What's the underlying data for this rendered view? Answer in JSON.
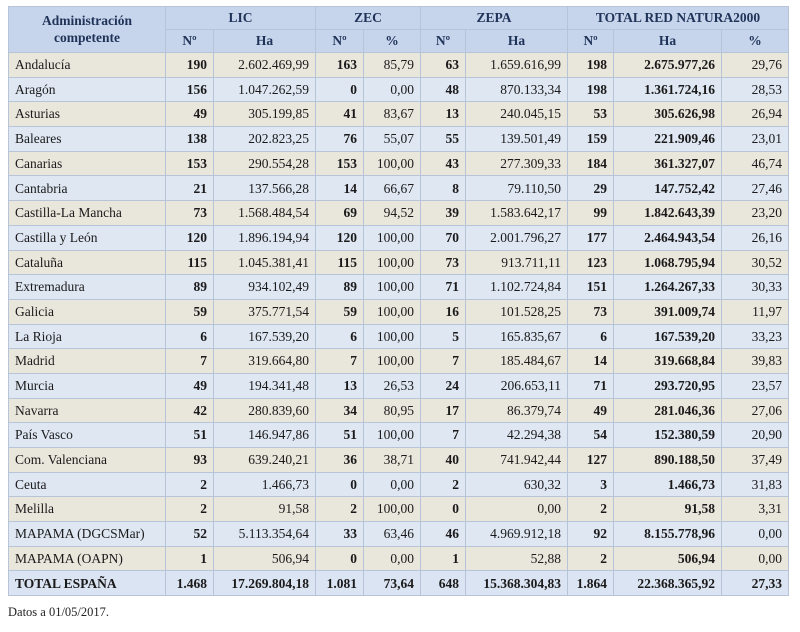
{
  "headers": {
    "admin": "Administración competente",
    "lic": "LIC",
    "zec": "ZEC",
    "zepa": "ZEPA",
    "total": "TOTAL RED NATURA2000",
    "no": "Nº",
    "ha": "Ha",
    "pct": "%"
  },
  "rows": [
    {
      "name": "Andalucía",
      "lic_n": "190",
      "lic_ha": "2.602.469,99",
      "zec_n": "163",
      "zec_pct": "85,79",
      "zepa_n": "63",
      "zepa_ha": "1.659.616,99",
      "tot_n": "198",
      "tot_ha": "2.675.977,26",
      "tot_pct": "29,76"
    },
    {
      "name": "Aragón",
      "lic_n": "156",
      "lic_ha": "1.047.262,59",
      "zec_n": "0",
      "zec_pct": "0,00",
      "zepa_n": "48",
      "zepa_ha": "870.133,34",
      "tot_n": "198",
      "tot_ha": "1.361.724,16",
      "tot_pct": "28,53"
    },
    {
      "name": "Asturias",
      "lic_n": "49",
      "lic_ha": "305.199,85",
      "zec_n": "41",
      "zec_pct": "83,67",
      "zepa_n": "13",
      "zepa_ha": "240.045,15",
      "tot_n": "53",
      "tot_ha": "305.626,98",
      "tot_pct": "26,94"
    },
    {
      "name": "Baleares",
      "lic_n": "138",
      "lic_ha": "202.823,25",
      "zec_n": "76",
      "zec_pct": "55,07",
      "zepa_n": "55",
      "zepa_ha": "139.501,49",
      "tot_n": "159",
      "tot_ha": "221.909,46",
      "tot_pct": "23,01"
    },
    {
      "name": "Canarias",
      "lic_n": "153",
      "lic_ha": "290.554,28",
      "zec_n": "153",
      "zec_pct": "100,00",
      "zepa_n": "43",
      "zepa_ha": "277.309,33",
      "tot_n": "184",
      "tot_ha": "361.327,07",
      "tot_pct": "46,74"
    },
    {
      "name": "Cantabria",
      "lic_n": "21",
      "lic_ha": "137.566,28",
      "zec_n": "14",
      "zec_pct": "66,67",
      "zepa_n": "8",
      "zepa_ha": "79.110,50",
      "tot_n": "29",
      "tot_ha": "147.752,42",
      "tot_pct": "27,46"
    },
    {
      "name": "Castilla-La Mancha",
      "lic_n": "73",
      "lic_ha": "1.568.484,54",
      "zec_n": "69",
      "zec_pct": "94,52",
      "zepa_n": "39",
      "zepa_ha": "1.583.642,17",
      "tot_n": "99",
      "tot_ha": "1.842.643,39",
      "tot_pct": "23,20"
    },
    {
      "name": "Castilla y León",
      "lic_n": "120",
      "lic_ha": "1.896.194,94",
      "zec_n": "120",
      "zec_pct": "100,00",
      "zepa_n": "70",
      "zepa_ha": "2.001.796,27",
      "tot_n": "177",
      "tot_ha": "2.464.943,54",
      "tot_pct": "26,16"
    },
    {
      "name": "Cataluña",
      "lic_n": "115",
      "lic_ha": "1.045.381,41",
      "zec_n": "115",
      "zec_pct": "100,00",
      "zepa_n": "73",
      "zepa_ha": "913.711,11",
      "tot_n": "123",
      "tot_ha": "1.068.795,94",
      "tot_pct": "30,52"
    },
    {
      "name": "Extremadura",
      "lic_n": "89",
      "lic_ha": "934.102,49",
      "zec_n": "89",
      "zec_pct": "100,00",
      "zepa_n": "71",
      "zepa_ha": "1.102.724,84",
      "tot_n": "151",
      "tot_ha": "1.264.267,33",
      "tot_pct": "30,33"
    },
    {
      "name": "Galicia",
      "lic_n": "59",
      "lic_ha": "375.771,54",
      "zec_n": "59",
      "zec_pct": "100,00",
      "zepa_n": "16",
      "zepa_ha": "101.528,25",
      "tot_n": "73",
      "tot_ha": "391.009,74",
      "tot_pct": "11,97"
    },
    {
      "name": "La Rioja",
      "lic_n": "6",
      "lic_ha": "167.539,20",
      "zec_n": "6",
      "zec_pct": "100,00",
      "zepa_n": "5",
      "zepa_ha": "165.835,67",
      "tot_n": "6",
      "tot_ha": "167.539,20",
      "tot_pct": "33,23"
    },
    {
      "name": "Madrid",
      "lic_n": "7",
      "lic_ha": "319.664,80",
      "zec_n": "7",
      "zec_pct": "100,00",
      "zepa_n": "7",
      "zepa_ha": "185.484,67",
      "tot_n": "14",
      "tot_ha": "319.668,84",
      "tot_pct": "39,83"
    },
    {
      "name": "Murcia",
      "lic_n": "49",
      "lic_ha": "194.341,48",
      "zec_n": "13",
      "zec_pct": "26,53",
      "zepa_n": "24",
      "zepa_ha": "206.653,11",
      "tot_n": "71",
      "tot_ha": "293.720,95",
      "tot_pct": "23,57"
    },
    {
      "name": "Navarra",
      "lic_n": "42",
      "lic_ha": "280.839,60",
      "zec_n": "34",
      "zec_pct": "80,95",
      "zepa_n": "17",
      "zepa_ha": "86.379,74",
      "tot_n": "49",
      "tot_ha": "281.046,36",
      "tot_pct": "27,06"
    },
    {
      "name": "País Vasco",
      "lic_n": "51",
      "lic_ha": "146.947,86",
      "zec_n": "51",
      "zec_pct": "100,00",
      "zepa_n": "7",
      "zepa_ha": "42.294,38",
      "tot_n": "54",
      "tot_ha": "152.380,59",
      "tot_pct": "20,90"
    },
    {
      "name": "Com. Valenciana",
      "lic_n": "93",
      "lic_ha": "639.240,21",
      "zec_n": "36",
      "zec_pct": "38,71",
      "zepa_n": "40",
      "zepa_ha": "741.942,44",
      "tot_n": "127",
      "tot_ha": "890.188,50",
      "tot_pct": "37,49"
    },
    {
      "name": "Ceuta",
      "lic_n": "2",
      "lic_ha": "1.466,73",
      "zec_n": "0",
      "zec_pct": "0,00",
      "zepa_n": "2",
      "zepa_ha": "630,32",
      "tot_n": "3",
      "tot_ha": "1.466,73",
      "tot_pct": "31,83"
    },
    {
      "name": "Melilla",
      "lic_n": "2",
      "lic_ha": "91,58",
      "zec_n": "2",
      "zec_pct": "100,00",
      "zepa_n": "0",
      "zepa_ha": "0,00",
      "tot_n": "2",
      "tot_ha": "91,58",
      "tot_pct": "3,31"
    },
    {
      "name": "MAPAMA (DGCSMar)",
      "lic_n": "52",
      "lic_ha": "5.113.354,64",
      "zec_n": "33",
      "zec_pct": "63,46",
      "zepa_n": "46",
      "zepa_ha": "4.969.912,18",
      "tot_n": "92",
      "tot_ha": "8.155.778,96",
      "tot_pct": "0,00"
    },
    {
      "name": "MAPAMA (OAPN)",
      "lic_n": "1",
      "lic_ha": "506,94",
      "zec_n": "0",
      "zec_pct": "0,00",
      "zepa_n": "1",
      "zepa_ha": "52,88",
      "tot_n": "2",
      "tot_ha": "506,94",
      "tot_pct": "0,00"
    }
  ],
  "total": {
    "name": "TOTAL ESPAÑA",
    "lic_n": "1.468",
    "lic_ha": "17.269.804,18",
    "zec_n": "1.081",
    "zec_pct": "73,64",
    "zepa_n": "648",
    "zepa_ha": "15.368.304,83",
    "tot_n": "1.864",
    "tot_ha": "22.368.365,92",
    "tot_pct": "27,33"
  },
  "note": "Datos a 01/05/2017."
}
